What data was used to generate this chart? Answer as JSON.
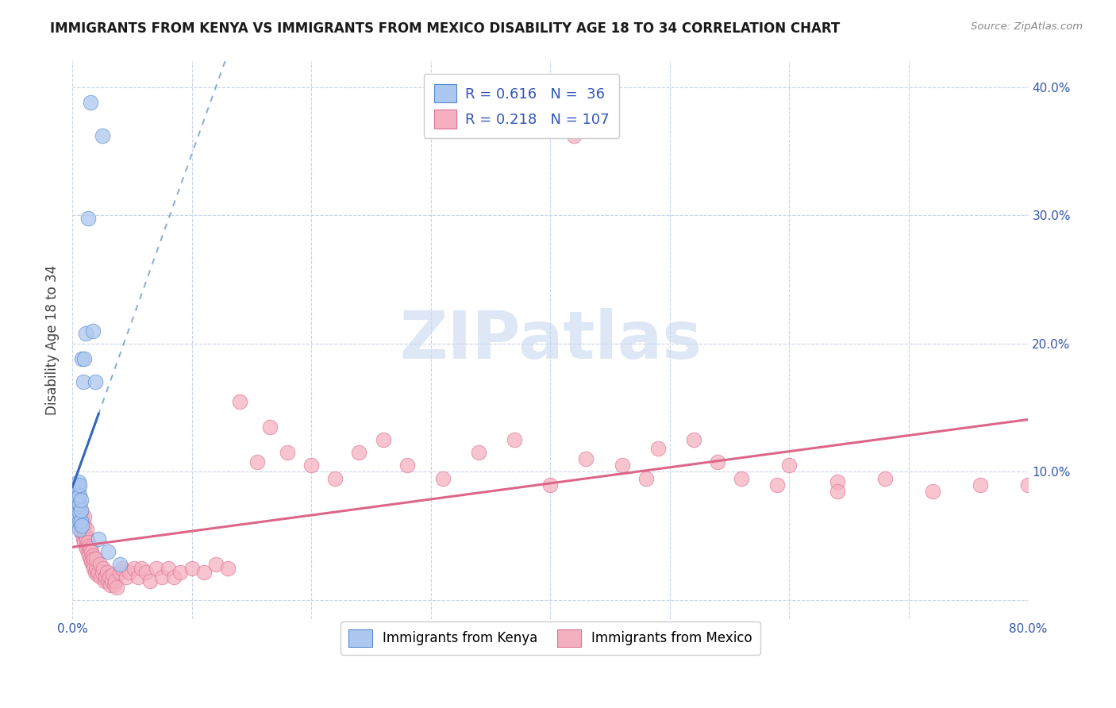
{
  "title": "IMMIGRANTS FROM KENYA VS IMMIGRANTS FROM MEXICO DISABILITY AGE 18 TO 34 CORRELATION CHART",
  "source": "Source: ZipAtlas.com",
  "ylabel": "Disability Age 18 to 34",
  "xlim": [
    0.0,
    0.8
  ],
  "ylim": [
    -0.015,
    0.42
  ],
  "xticks": [
    0.0,
    0.1,
    0.2,
    0.3,
    0.4,
    0.5,
    0.6,
    0.7,
    0.8
  ],
  "xticklabels": [
    "0.0%",
    "",
    "",
    "",
    "",
    "",
    "",
    "",
    "80.0%"
  ],
  "ytick_positions": [
    0.0,
    0.1,
    0.2,
    0.3,
    0.4
  ],
  "yticklabels_right": [
    "",
    "10.0%",
    "20.0%",
    "30.0%",
    "40.0%"
  ],
  "kenya_R": 0.616,
  "kenya_N": 36,
  "mexico_R": 0.218,
  "mexico_N": 107,
  "kenya_color": "#adc8f0",
  "kenya_edge_color": "#5588cc",
  "kenya_line_color": "#3366bb",
  "mexico_color": "#f5b0c0",
  "mexico_edge_color": "#dd7090",
  "mexico_line_color": "#dd6688",
  "watermark": "ZIPatlas",
  "watermark_color": "#c8d8f0",
  "kenya_x": [
    0.003,
    0.003,
    0.003,
    0.004,
    0.004,
    0.004,
    0.004,
    0.005,
    0.005,
    0.005,
    0.005,
    0.005,
    0.005,
    0.005,
    0.006,
    0.006,
    0.006,
    0.006,
    0.006,
    0.006,
    0.007,
    0.007,
    0.007,
    0.008,
    0.008,
    0.009,
    0.01,
    0.011,
    0.013,
    0.015,
    0.017,
    0.019,
    0.022,
    0.025,
    0.03,
    0.04
  ],
  "kenya_y": [
    0.072,
    0.078,
    0.085,
    0.065,
    0.072,
    0.08,
    0.09,
    0.06,
    0.065,
    0.07,
    0.075,
    0.08,
    0.088,
    0.092,
    0.055,
    0.062,
    0.068,
    0.075,
    0.082,
    0.09,
    0.062,
    0.07,
    0.078,
    0.058,
    0.188,
    0.17,
    0.188,
    0.208,
    0.298,
    0.388,
    0.21,
    0.17,
    0.048,
    0.362,
    0.038,
    0.028
  ],
  "mexico_x": [
    0.002,
    0.003,
    0.003,
    0.004,
    0.004,
    0.005,
    0.005,
    0.005,
    0.006,
    0.006,
    0.006,
    0.007,
    0.007,
    0.007,
    0.008,
    0.008,
    0.008,
    0.009,
    0.009,
    0.01,
    0.01,
    0.01,
    0.01,
    0.011,
    0.011,
    0.012,
    0.012,
    0.012,
    0.013,
    0.013,
    0.014,
    0.014,
    0.015,
    0.015,
    0.016,
    0.016,
    0.017,
    0.017,
    0.018,
    0.018,
    0.019,
    0.02,
    0.02,
    0.021,
    0.022,
    0.023,
    0.024,
    0.025,
    0.026,
    0.027,
    0.028,
    0.029,
    0.03,
    0.031,
    0.032,
    0.033,
    0.034,
    0.035,
    0.036,
    0.037,
    0.04,
    0.042,
    0.045,
    0.048,
    0.052,
    0.055,
    0.058,
    0.062,
    0.065,
    0.07,
    0.075,
    0.08,
    0.085,
    0.09,
    0.1,
    0.11,
    0.12,
    0.13,
    0.14,
    0.155,
    0.165,
    0.18,
    0.2,
    0.22,
    0.24,
    0.26,
    0.28,
    0.31,
    0.34,
    0.37,
    0.4,
    0.43,
    0.46,
    0.49,
    0.52,
    0.56,
    0.6,
    0.64,
    0.68,
    0.72,
    0.76,
    0.8,
    0.42,
    0.48,
    0.54,
    0.59,
    0.64
  ],
  "mexico_y": [
    0.082,
    0.075,
    0.088,
    0.068,
    0.08,
    0.065,
    0.072,
    0.082,
    0.06,
    0.068,
    0.075,
    0.055,
    0.062,
    0.07,
    0.052,
    0.058,
    0.065,
    0.048,
    0.055,
    0.045,
    0.052,
    0.058,
    0.065,
    0.042,
    0.05,
    0.04,
    0.048,
    0.055,
    0.038,
    0.045,
    0.035,
    0.042,
    0.032,
    0.04,
    0.03,
    0.038,
    0.028,
    0.035,
    0.025,
    0.032,
    0.022,
    0.025,
    0.032,
    0.02,
    0.022,
    0.028,
    0.018,
    0.022,
    0.025,
    0.015,
    0.018,
    0.022,
    0.015,
    0.018,
    0.012,
    0.015,
    0.02,
    0.012,
    0.015,
    0.01,
    0.022,
    0.025,
    0.018,
    0.022,
    0.025,
    0.018,
    0.025,
    0.022,
    0.015,
    0.025,
    0.018,
    0.025,
    0.018,
    0.022,
    0.025,
    0.022,
    0.028,
    0.025,
    0.155,
    0.108,
    0.135,
    0.115,
    0.105,
    0.095,
    0.115,
    0.125,
    0.105,
    0.095,
    0.115,
    0.125,
    0.09,
    0.11,
    0.105,
    0.118,
    0.125,
    0.095,
    0.105,
    0.092,
    0.095,
    0.085,
    0.09,
    0.09,
    0.362,
    0.095,
    0.108,
    0.09,
    0.085
  ]
}
